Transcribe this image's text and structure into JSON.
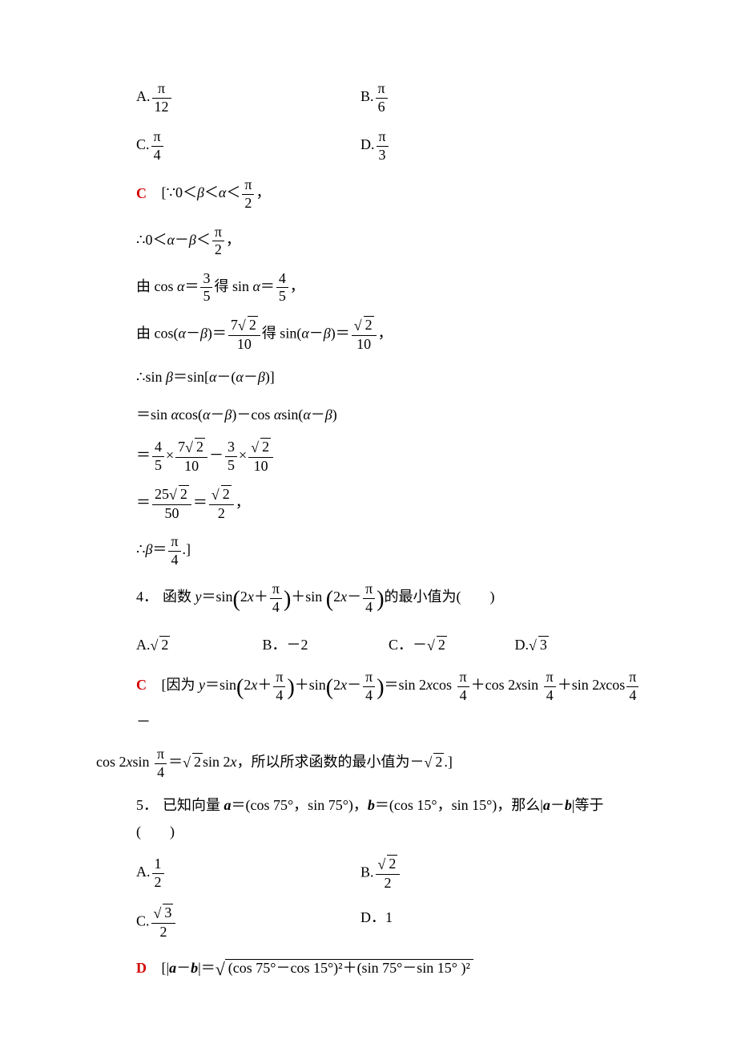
{
  "q3": {
    "options": {
      "a_label": "A.",
      "a_num": "π",
      "a_den": "12",
      "b_label": "B.",
      "b_num": "π",
      "b_den": "6",
      "c_label": "C.",
      "c_num": "π",
      "c_den": "4",
      "d_label": "D.",
      "d_num": "π",
      "d_den": "3"
    },
    "answer": "C",
    "sol": {
      "l1_pre": "[∵0＜",
      "l1_beta": "β",
      "l1_mid": "＜",
      "l1_alpha": "α",
      "l1_lt": "＜",
      "l1_num": "π",
      "l1_den": "2",
      "l1_end": "，",
      "l2_pre": "∴0＜",
      "l2_alpha": "α",
      "l2_minus": "－",
      "l2_beta": "β",
      "l2_lt": "＜",
      "l2_num": "π",
      "l2_den": "2",
      "l2_end": "，",
      "l3_pre": "由 cos ",
      "l3_alpha": "α",
      "l3_eq": "＝",
      "l3_n1": "3",
      "l3_d1": "5",
      "l3_mid": "得 sin ",
      "l3_alpha2": "α",
      "l3_eq2": "＝",
      "l3_n2": "4",
      "l3_d2": "5",
      "l3_end": "，",
      "l4_pre": "由 cos(",
      "l4_a": "α",
      "l4_m": "－",
      "l4_b": "β",
      "l4_p": ")＝",
      "l4_n1a": "7",
      "l4_n1b": "2",
      "l4_d1": "10",
      "l4_mid": "得 sin(",
      "l4_a2": "α",
      "l4_m2": "－",
      "l4_b2": "β",
      "l4_p2": ")＝",
      "l4_n2": "2",
      "l4_d2": "10",
      "l4_end": "，",
      "l5": "∴sin ",
      "l5_b": "β",
      "l5_eq": "＝sin[",
      "l5_a": "α",
      "l5_m": "－(",
      "l5_a2": "α",
      "l5_m2": "－",
      "l5_b2": "β",
      "l5_end": ")]",
      "l6_pre": "＝sin ",
      "l6_a": "α",
      "l6_cos": "cos(",
      "l6_a2": "α",
      "l6_m": "－",
      "l6_b": "β",
      "l6_mid": ")－cos ",
      "l6_a3": "α",
      "l6_sin": "sin(",
      "l6_a4": "α",
      "l6_m2": "－",
      "l6_b2": "β",
      "l6_end": ")",
      "l7_eq": "＝",
      "l7_n1": "4",
      "l7_d1": "5",
      "l7_x": "×",
      "l7_n2a": "7",
      "l7_n2b": "2",
      "l7_d2": "10",
      "l7_m": "－",
      "l7_n3": "3",
      "l7_d3": "5",
      "l7_x2": "×",
      "l7_n4": "2",
      "l7_d4": "10",
      "l8_eq": "＝",
      "l8_n1a": "25",
      "l8_n1b": "2",
      "l8_d1": "50",
      "l8_eq2": "＝",
      "l8_n2": "2",
      "l8_d2": "2",
      "l8_end": "，",
      "l9_pre": "∴",
      "l9_b": "β",
      "l9_eq": "＝",
      "l9_n": "π",
      "l9_d": "4",
      "l9_end": ".]"
    }
  },
  "q4": {
    "num": "4．",
    "stem_pre": "函数 ",
    "stem_y": "y",
    "stem_eq": "＝sin",
    "arg1_2x": "2",
    "arg1_x": "x",
    "arg1_plus": "＋",
    "arg1_n": "π",
    "arg1_d": "4",
    "stem_plus": "＋sin ",
    "arg2_2x": "2",
    "arg2_x": "x",
    "arg2_minus": "－",
    "arg2_n": "π",
    "arg2_d": "4",
    "stem_end": "的最小值为(　　)",
    "options": {
      "a_label": "A.",
      "a_val": "2",
      "b_label": "B．－2",
      "c_label": "C．－",
      "c_val": "2",
      "d_label": "D.",
      "d_val": "3"
    },
    "answer": "C",
    "sol": {
      "pre": "[因为 ",
      "y": "y",
      "eq": "＝sin",
      "a1_2": "2",
      "a1_x": "x",
      "a1_p": "＋",
      "a1_n": "π",
      "a1_d": "4",
      "plus": "＋sin",
      "a2_2": "2",
      "a2_x": "x",
      "a2_m": "－",
      "a2_n": "π",
      "a2_d": "4",
      "eq2": "＝sin 2",
      "x1": "x",
      "cos1": "cos ",
      "f1n": "π",
      "f1d": "4",
      "p2": "＋cos 2",
      "x2": "x",
      "sin2": "sin ",
      "f2n": "π",
      "f2d": "4",
      "p3": "＋sin 2",
      "x3": "x",
      "cos3": "cos",
      "f3n": "π",
      "f3d": "4",
      "m": "－",
      "l2_pre": "cos 2",
      "l2_x": "x",
      "l2_sin": "sin ",
      "l2_fn": "π",
      "l2_fd": "4",
      "l2_eq": "＝",
      "l2_sqrt": "2",
      "l2_sin2x": "sin 2",
      "l2_x2": "x",
      "l2_mid": "，所以所求函数的最小值为－",
      "l2_sqrt2": "2",
      "l2_end": ".]"
    }
  },
  "q5": {
    "num": "5．",
    "stem_pre": "已知向量 ",
    "a": "a",
    "eq_a": "＝(cos 75°，sin 75°)，",
    "b": "b",
    "eq_b": "＝(cos 15°，sin 15°)，那么|",
    "a2": "a",
    "minus": "－",
    "b2": "b",
    "stem_end": "|等于(　　)",
    "options": {
      "a_label": "A.",
      "a_n": "1",
      "a_d": "2",
      "b_label": "B.",
      "b_n": "2",
      "b_d": "2",
      "c_label": "C.",
      "c_n": "3",
      "c_d": "2",
      "d_label": "D．1"
    },
    "answer": "D",
    "sol": {
      "pre": "[|",
      "a": "a",
      "m": "－",
      "b": "b",
      "mid": "|＝",
      "sqrt_content": "(cos 75°－cos 15°)²＋(sin 75°－sin 15° )²"
    }
  }
}
